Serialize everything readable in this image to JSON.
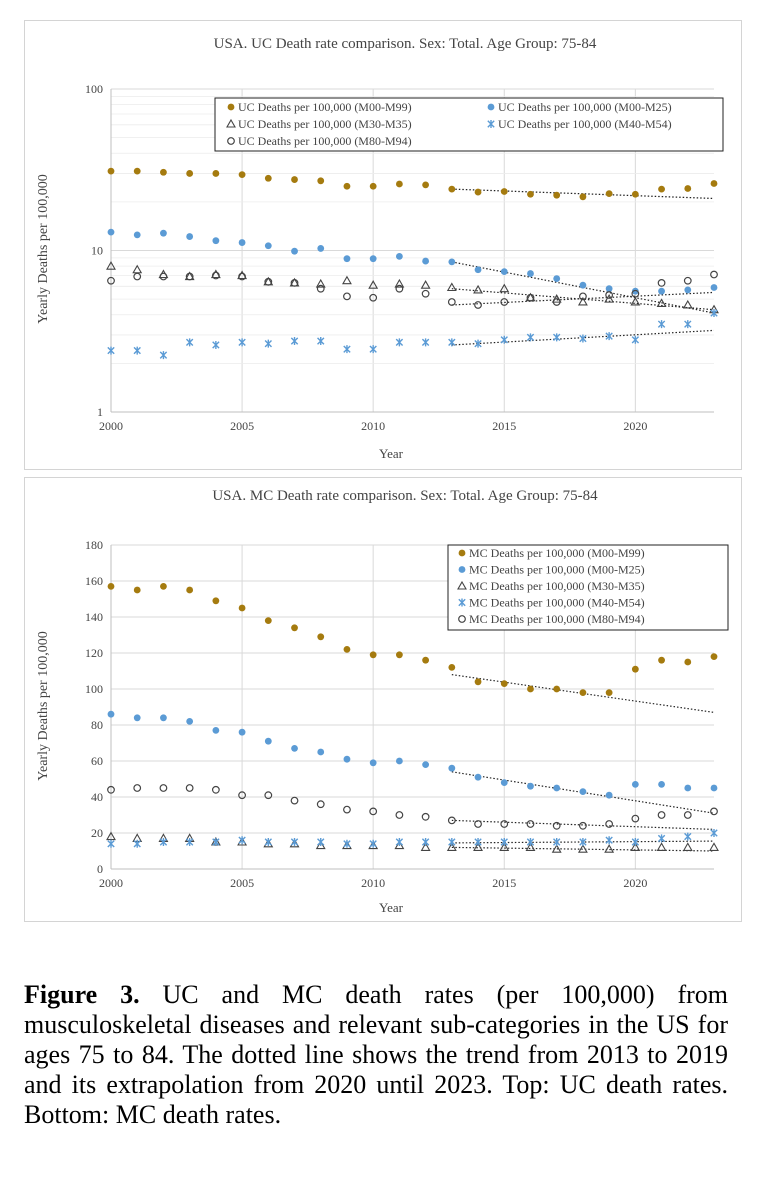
{
  "colors": {
    "gold": "#a57b0f",
    "blue": "#5b9bd5",
    "dark": "#444444",
    "grid": "#d9d9d9"
  },
  "chart_data": [
    {
      "type": "scatter",
      "title": "USA. UC Death rate comparison. Sex: Total. Age Group: 75-84",
      "xlabel": "Year",
      "ylabel": "Yearly Deaths per 100,000",
      "yscale": "log",
      "xlim": [
        2000,
        2023
      ],
      "ylim": [
        1,
        100
      ],
      "xticks": [
        "2000",
        "2005",
        "2010",
        "2015",
        "2020"
      ],
      "yticks": [
        "1",
        "10",
        "100"
      ],
      "legend_position": "top-right",
      "trend_range": [
        2013,
        2023
      ],
      "x": [
        2000,
        2001,
        2002,
        2003,
        2004,
        2005,
        2006,
        2007,
        2008,
        2009,
        2010,
        2011,
        2012,
        2013,
        2014,
        2015,
        2016,
        2017,
        2018,
        2019,
        2020,
        2021,
        2022,
        2023
      ],
      "series": [
        {
          "name": "UC Deaths per 100,000 (M00-M99)",
          "marker": "filled-circle",
          "color": "#a57b0f",
          "values": [
            31,
            31,
            30.5,
            30,
            30,
            29.5,
            28,
            27.5,
            27,
            25,
            25,
            25.8,
            25.5,
            24,
            23,
            23.2,
            22.3,
            22,
            21.5,
            22.5,
            22.3,
            24,
            24.2,
            26
          ],
          "trend": [
            24.0,
            21.0
          ]
        },
        {
          "name": "UC Deaths per 100,000 (M00-M25)",
          "marker": "filled-circle",
          "color": "#5b9bd5",
          "values": [
            13,
            12.5,
            12.8,
            12.2,
            11.5,
            11.2,
            10.7,
            9.9,
            10.3,
            8.9,
            8.9,
            9.2,
            8.6,
            8.5,
            7.6,
            7.4,
            7.2,
            6.7,
            6.1,
            5.8,
            5.6,
            5.6,
            5.7,
            5.9
          ],
          "trend": [
            8.5,
            4.1
          ]
        },
        {
          "name": "UC Deaths per 100,000 (M30-M35)",
          "marker": "open-triangle",
          "color": "#444444",
          "values": [
            8,
            7.6,
            7.1,
            6.9,
            7.1,
            7,
            6.4,
            6.3,
            6.2,
            6.5,
            6.1,
            6.2,
            6.1,
            5.9,
            5.7,
            5.8,
            5.1,
            5,
            4.8,
            5,
            4.8,
            4.7,
            4.6,
            4.3
          ],
          "trend": [
            5.8,
            4.3
          ]
        },
        {
          "name": "UC Deaths per 100,000 (M40-M54)",
          "marker": "asterisk",
          "color": "#5b9bd5",
          "values": [
            2.4,
            2.4,
            2.25,
            2.7,
            2.6,
            2.7,
            2.65,
            2.75,
            2.75,
            2.45,
            2.45,
            2.7,
            2.7,
            2.7,
            2.65,
            2.8,
            2.9,
            2.9,
            2.85,
            2.95,
            2.8,
            3.5,
            3.5,
            4.1
          ],
          "trend": [
            2.6,
            3.2
          ]
        },
        {
          "name": "UC Deaths per 100,000 (M80-M94)",
          "marker": "open-circle",
          "color": "#444444",
          "values": [
            6.5,
            6.9,
            6.9,
            6.9,
            7,
            6.9,
            6.4,
            6.3,
            5.8,
            5.2,
            5.1,
            5.8,
            5.4,
            4.8,
            4.6,
            4.8,
            5.1,
            4.8,
            5.2,
            5.3,
            5.4,
            6.3,
            6.5,
            7.1
          ],
          "trend": [
            4.6,
            5.5
          ]
        }
      ]
    },
    {
      "type": "scatter",
      "title": "USA. MC Death rate comparison. Sex: Total. Age Group: 75-84",
      "xlabel": "Year",
      "ylabel": "Yearly Deaths per 100,000",
      "yscale": "linear",
      "xlim": [
        2000,
        2023
      ],
      "ylim": [
        0,
        180
      ],
      "xticks": [
        "2000",
        "2005",
        "2010",
        "2015",
        "2020"
      ],
      "yticks": [
        "0",
        "20",
        "40",
        "60",
        "80",
        "100",
        "120",
        "140",
        "160",
        "180"
      ],
      "legend_position": "top-right",
      "trend_range": [
        2013,
        2023
      ],
      "x": [
        2000,
        2001,
        2002,
        2003,
        2004,
        2005,
        2006,
        2007,
        2008,
        2009,
        2010,
        2011,
        2012,
        2013,
        2014,
        2015,
        2016,
        2017,
        2018,
        2019,
        2020,
        2021,
        2022,
        2023
      ],
      "series": [
        {
          "name": "MC Deaths per 100,000 (M00-M99)",
          "marker": "filled-circle",
          "color": "#a57b0f",
          "values": [
            157,
            155,
            157,
            155,
            149,
            145,
            138,
            134,
            129,
            122,
            119,
            119,
            116,
            112,
            104,
            103,
            100,
            100,
            98,
            98,
            111,
            116,
            115,
            118
          ],
          "trend": [
            108,
            87
          ]
        },
        {
          "name": "MC Deaths per 100,000 (M00-M25)",
          "marker": "filled-circle",
          "color": "#5b9bd5",
          "values": [
            86,
            84,
            84,
            82,
            77,
            76,
            71,
            67,
            65,
            61,
            59,
            60,
            58,
            56,
            51,
            48,
            46,
            45,
            43,
            41,
            47,
            47,
            45,
            45
          ],
          "trend": [
            54,
            31
          ]
        },
        {
          "name": "MC Deaths per 100,000 (M30-M35)",
          "marker": "open-triangle",
          "color": "#444444",
          "values": [
            18,
            17,
            17,
            17,
            15,
            15,
            14,
            14,
            13,
            13,
            13,
            13,
            12,
            12,
            12,
            12,
            12,
            11,
            11,
            11,
            12,
            12,
            12,
            12
          ],
          "trend": [
            12,
            10
          ]
        },
        {
          "name": "MC Deaths per 100,000 (M40-M54)",
          "marker": "asterisk",
          "color": "#5b9bd5",
          "values": [
            14,
            14,
            15,
            15,
            15,
            16,
            15,
            15,
            15,
            14,
            14,
            15,
            15,
            15,
            15,
            15,
            15,
            15,
            15,
            16,
            15,
            17,
            18,
            20
          ],
          "trend": [
            14.5,
            15.5
          ]
        },
        {
          "name": "MC Deaths per 100,000 (M80-M94)",
          "marker": "open-circle",
          "color": "#444444",
          "values": [
            44,
            45,
            45,
            45,
            44,
            41,
            41,
            38,
            36,
            33,
            32,
            30,
            29,
            27,
            25,
            25,
            25,
            24,
            24,
            25,
            28,
            30,
            30,
            32
          ],
          "trend": [
            27,
            22
          ]
        }
      ]
    }
  ],
  "caption": {
    "label": "Figure 3.",
    "text": "UC and MC death rates (per 100,000) from musculoskeletal diseases and relevant sub-categories in the US for ages 75 to 84. The dotted line shows the trend from 2013 to 2019 and its extrapolation from 2020 until 2023. Top: UC death rates. Bottom: MC death rates."
  }
}
